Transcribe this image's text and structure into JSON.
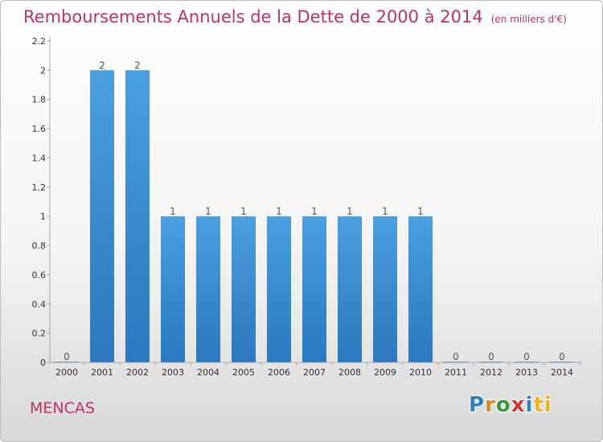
{
  "chart_data": {
    "type": "bar",
    "title": "Remboursements Annuels de la Dette de 2000 à 2014",
    "subtitle": "(en milliers d'€)",
    "categories": [
      "2000",
      "2001",
      "2002",
      "2003",
      "2004",
      "2005",
      "2006",
      "2007",
      "2008",
      "2009",
      "2010",
      "2011",
      "2012",
      "2013",
      "2014"
    ],
    "values": [
      0,
      2,
      2,
      1,
      1,
      1,
      1,
      1,
      1,
      1,
      1,
      0,
      0,
      0,
      0
    ],
    "data_labels": [
      "0",
      "2",
      "2",
      "1",
      "1",
      "1",
      "1",
      "1",
      "1",
      "1",
      "1",
      "0",
      "0",
      "0",
      "0"
    ],
    "yticks": [
      "0",
      "0.2",
      "0.4",
      "0.6",
      "0.8",
      "1",
      "1.2",
      "1.4",
      "1.6",
      "1.8",
      "2",
      "2.2"
    ],
    "ylim": [
      0,
      2.2
    ],
    "xlabel": "",
    "ylabel": "",
    "grid": false,
    "bar_color": "#4a9fe0",
    "bar_color_dark": "#2a78bd"
  },
  "commune": "MENCAS",
  "logo": {
    "letters": [
      "P",
      "r",
      "o",
      "x",
      "i",
      "ti"
    ]
  }
}
